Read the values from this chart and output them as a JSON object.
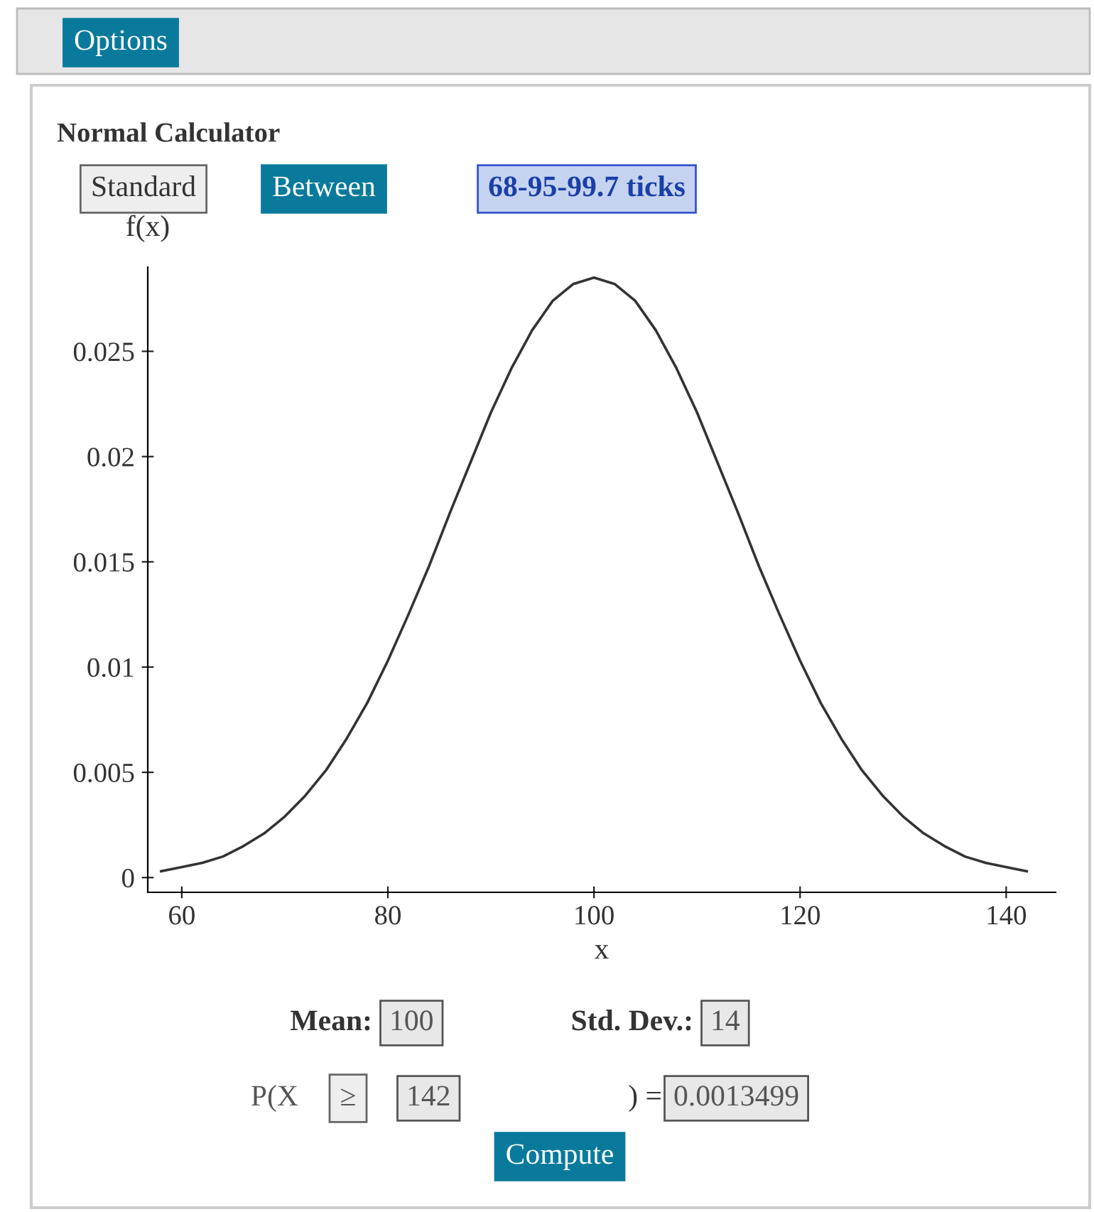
{
  "chart_data": {
    "type": "line",
    "title": "Normal Calculator",
    "xlabel": "x",
    "ylabel": "f(x)",
    "x": [
      58,
      60,
      62,
      64,
      66,
      68,
      70,
      72,
      74,
      76,
      78,
      80,
      82,
      84,
      86,
      88,
      90,
      92,
      94,
      96,
      98,
      100,
      102,
      104,
      106,
      108,
      110,
      112,
      114,
      116,
      118,
      120,
      122,
      124,
      126,
      128,
      130,
      132,
      134,
      136,
      138,
      140,
      142
    ],
    "series": [
      {
        "color": "#333333",
        "values": [
          0.0003,
          0.0005,
          0.0007,
          0.001,
          0.0015,
          0.0021,
          0.0029,
          0.0039,
          0.0051,
          0.0066,
          0.0083,
          0.0103,
          0.0125,
          0.0148,
          0.0173,
          0.0197,
          0.0221,
          0.0242,
          0.026,
          0.0274,
          0.0282,
          0.0285,
          0.0282,
          0.0274,
          0.026,
          0.0242,
          0.0221,
          0.0197,
          0.0173,
          0.0148,
          0.0125,
          0.0103,
          0.0083,
          0.0066,
          0.0051,
          0.0039,
          0.0029,
          0.0021,
          0.0015,
          0.001,
          0.0007,
          0.0005,
          0.0003
        ]
      }
    ],
    "xlim": [
      56.7,
      144.8
    ],
    "ylim": [
      -0.0007,
      0.029
    ],
    "xticks": [
      60,
      80,
      100,
      120,
      140
    ],
    "yticks": [
      0,
      0.005,
      0.01,
      0.015,
      0.02,
      0.025
    ],
    "grid": false,
    "legend": false,
    "marker": "none",
    "line_style": "solid",
    "annotations": [
      "Options",
      "Standard",
      "Between",
      "68-95-99.7 ticks",
      "Mean:",
      "100",
      "Std. Dev.:",
      "14",
      "P(X",
      "≥",
      "142",
      ") =",
      "0.0013499",
      "Compute"
    ]
  }
}
